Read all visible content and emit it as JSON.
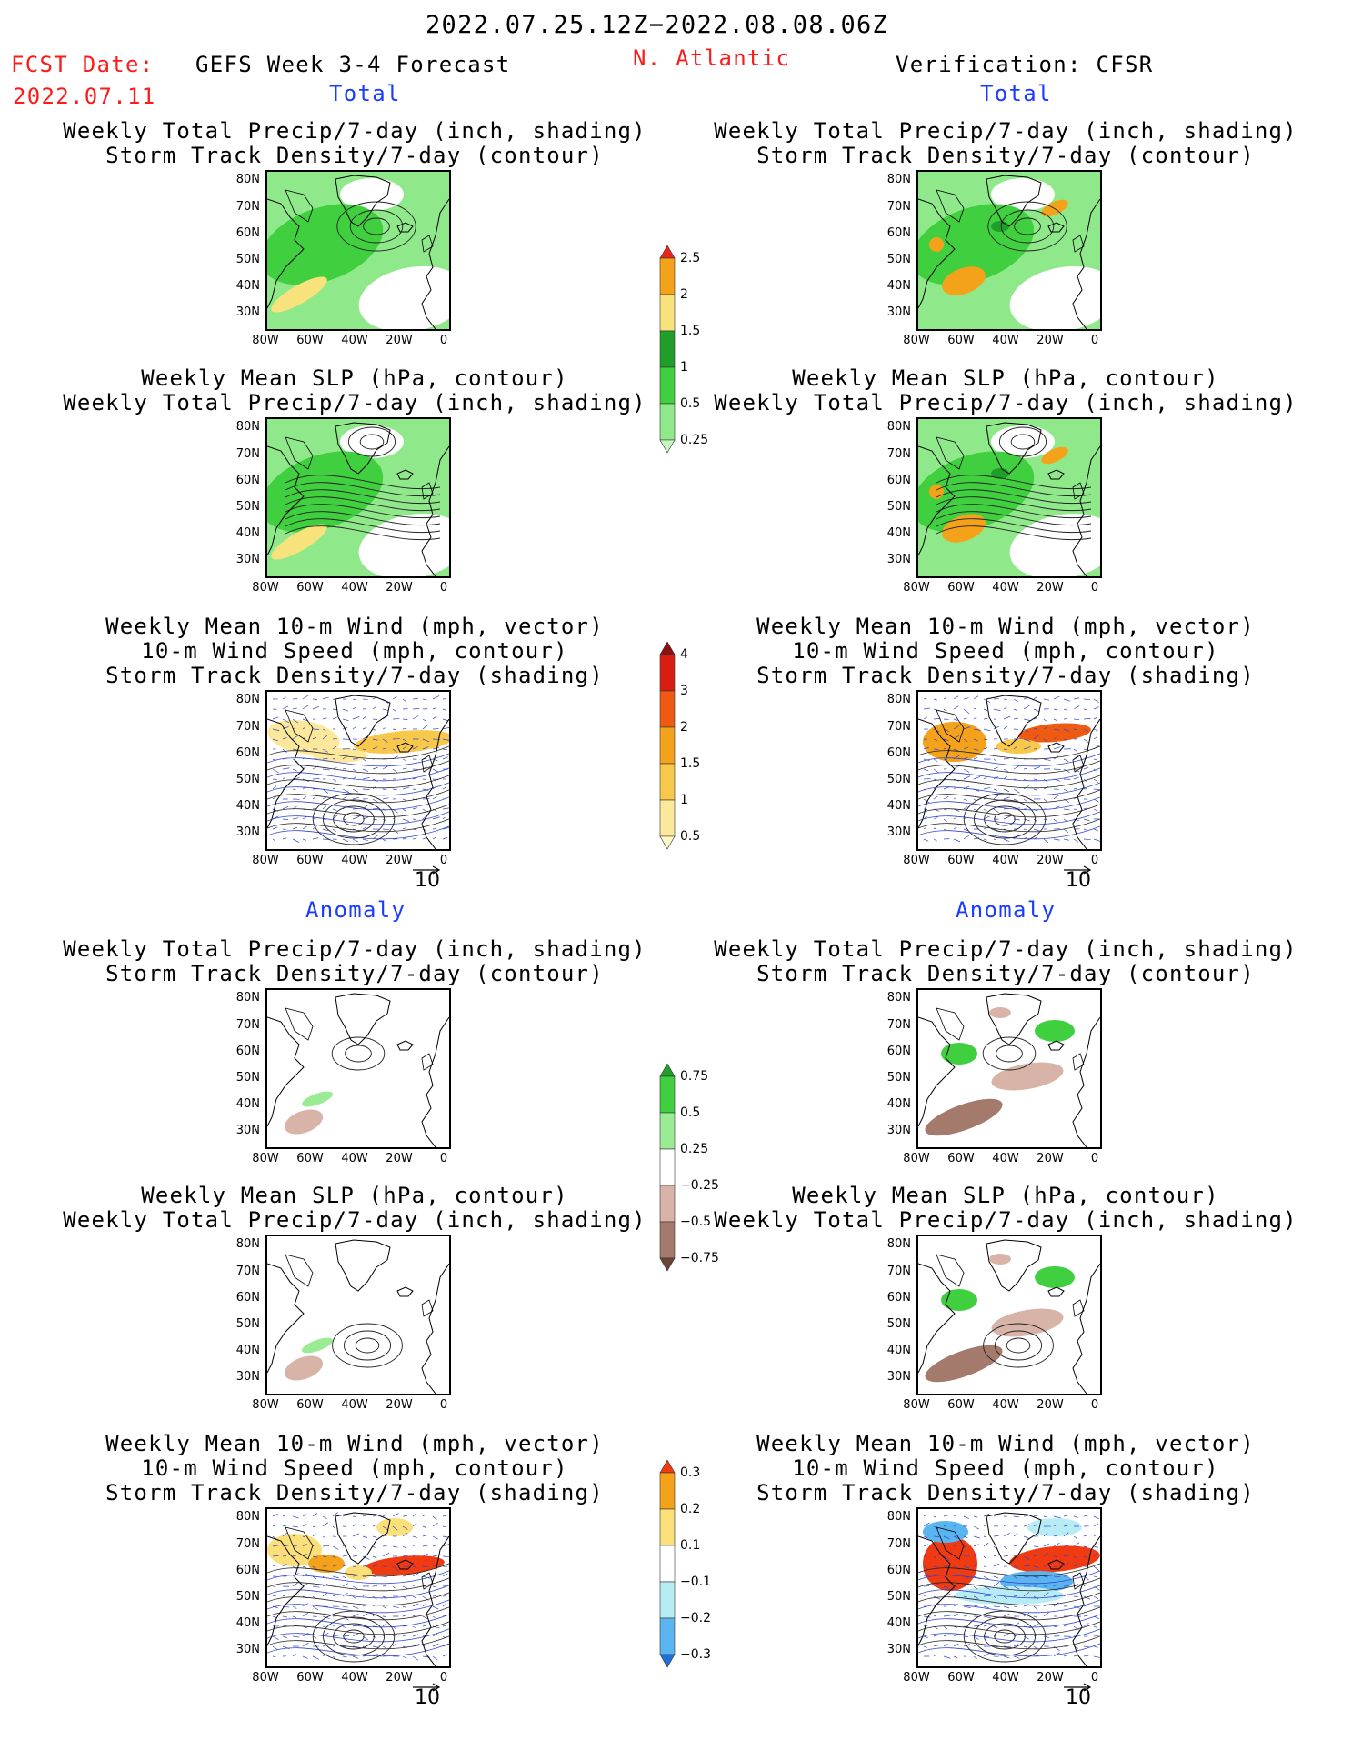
{
  "header": {
    "date_range": "2022.07.25.12Z−2022.08.08.06Z",
    "fcst_label": "FCST Date:",
    "fcst_date": "2022.07.11",
    "forecast_title": "GEFS Week 3-4 Forecast",
    "region": "N. Atlantic",
    "verification": "Verification: CFSR"
  },
  "sections": {
    "total": "Total",
    "anomaly": "Anomaly"
  },
  "panel_titles": {
    "precip_track": [
      "Weekly Total Precip/7-day (inch, shading)",
      "Storm Track Density/7-day (contour)"
    ],
    "slp_precip": [
      "Weekly Mean SLP (hPa, contour)",
      "Weekly Total Precip/7-day (inch, shading)"
    ],
    "wind_track": [
      "Weekly Mean 10-m Wind (mph, vector)",
      "10-m Wind Speed (mph, contour)",
      "Storm Track Density/7-day (shading)"
    ]
  },
  "axes": {
    "lat_ticks": [
      "80N",
      "70N",
      "60N",
      "50N",
      "40N",
      "30N"
    ],
    "lon_ticks": [
      "80W",
      "60W",
      "40W",
      "20W",
      "0"
    ]
  },
  "vector_ref": "10",
  "colorbars": {
    "precip_total": {
      "labels": [
        "2.5",
        "2",
        "1.5",
        "1",
        "0.5",
        "0.25"
      ],
      "colors": [
        "#e8261a",
        "#f5a21b",
        "#f7e27c",
        "#1f9e2a",
        "#3fcf3f",
        "#8fe98a",
        "#c7f5bf"
      ]
    },
    "track_total": {
      "labels": [
        "4",
        "3",
        "2",
        "1.5",
        "1",
        "0.5"
      ],
      "colors": [
        "#8a1212",
        "#d81e12",
        "#ef5a12",
        "#f5a21b",
        "#f8c84a",
        "#fbe89a",
        "#fff7c9"
      ]
    },
    "precip_anom": {
      "labels": [
        "0.75",
        "0.5",
        "0.25",
        "−0.25",
        "−0.5",
        "−0.75"
      ],
      "colors": [
        "#1f9e2a",
        "#3fcf3f",
        "#9aec94",
        "#ffffff",
        "#d8b4a8",
        "#a47a6c",
        "#6b4436"
      ]
    },
    "track_anom": {
      "labels": [
        "0.3",
        "0.2",
        "0.1",
        "−0.1",
        "−0.2",
        "−0.3"
      ],
      "colors": [
        "#ef3a12",
        "#f5a21b",
        "#fbe07a",
        "#ffffff",
        "#b8ecf5",
        "#5ab4f0",
        "#1f6fd8"
      ]
    }
  }
}
